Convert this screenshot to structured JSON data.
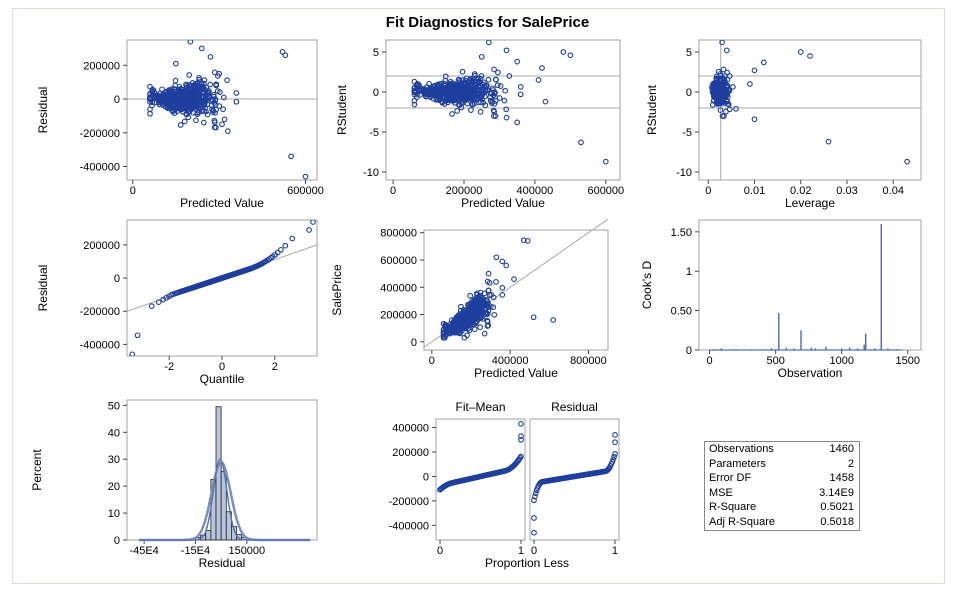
{
  "title": "Fit Diagnostics for SalePrice",
  "colors": {
    "marker": "#1f3f9e",
    "refline": "#a8a8a8",
    "bar": "#b7c4de",
    "curve": "#7a90c0",
    "spike": "#2b52a8"
  },
  "chart_data": [
    {
      "name": "residual-vs-predicted",
      "type": "scatter",
      "xlabel": "Predicted Value",
      "ylabel": "Residual",
      "xlim": [
        -20000,
        640000
      ],
      "ylim": [
        -480000,
        350000
      ],
      "xticks": [
        0,
        600000
      ],
      "yticks": [
        200000,
        0,
        -200000,
        -400000
      ],
      "reference_lines": {
        "y": [
          0
        ]
      },
      "outliers": [
        [
          200000,
          340000
        ],
        [
          240000,
          300000
        ],
        [
          520000,
          280000
        ],
        [
          530000,
          260000
        ],
        [
          150000,
          210000
        ],
        [
          270000,
          250000
        ],
        [
          300000,
          150000
        ],
        [
          290000,
          80000
        ],
        [
          330000,
          -190000
        ],
        [
          310000,
          -150000
        ],
        [
          550000,
          -340000
        ],
        [
          600000,
          -460000
        ]
      ]
    },
    {
      "name": "rstudent-vs-predicted",
      "type": "scatter",
      "xlabel": "Predicted Value",
      "ylabel": "RStudent",
      "xlim": [
        -20000,
        640000
      ],
      "ylim": [
        -11,
        6.5
      ],
      "xticks": [
        0,
        200000,
        400000,
        600000
      ],
      "yticks": [
        5,
        0,
        -5,
        -10
      ],
      "reference_lines": {
        "y": [
          2,
          -2
        ]
      },
      "outliers": [
        [
          270000,
          6.2
        ],
        [
          320000,
          5.2
        ],
        [
          480000,
          5.0
        ],
        [
          500000,
          4.6
        ],
        [
          350000,
          3.8
        ],
        [
          250000,
          4.4
        ],
        [
          420000,
          3.0
        ],
        [
          410000,
          1.5
        ],
        [
          430000,
          -1.2
        ],
        [
          320000,
          -3.2
        ],
        [
          350000,
          -3.8
        ],
        [
          530000,
          -6.3
        ],
        [
          600000,
          -8.7
        ]
      ]
    },
    {
      "name": "rstudent-vs-leverage",
      "type": "scatter",
      "xlabel": "Leverage",
      "ylabel": "RStudent",
      "xlim": [
        -0.002,
        0.046
      ],
      "ylim": [
        -11,
        6.5
      ],
      "xticks": [
        0.0,
        0.01,
        0.02,
        0.03,
        0.04
      ],
      "yticks": [
        5,
        0,
        -5,
        -10
      ],
      "reference_lines": {
        "y": [
          2,
          -2
        ],
        "x": [
          0.0027
        ]
      },
      "outliers": [
        [
          0.003,
          6.2
        ],
        [
          0.004,
          5.2
        ],
        [
          0.02,
          5.0
        ],
        [
          0.022,
          4.5
        ],
        [
          0.012,
          3.7
        ],
        [
          0.01,
          2.7
        ],
        [
          0.009,
          1.0
        ],
        [
          0.006,
          -2.1
        ],
        [
          0.01,
          -3.4
        ],
        [
          0.026,
          -6.2
        ],
        [
          0.043,
          -8.7
        ]
      ]
    },
    {
      "name": "residual-qq",
      "type": "scatter",
      "xlabel": "Quantile",
      "ylabel": "Residual",
      "xlim": [
        -3.6,
        3.6
      ],
      "ylim": [
        -470000,
        350000
      ],
      "xticks": [
        -2,
        0,
        2
      ],
      "yticks": [
        200000,
        0,
        -200000,
        -400000
      ],
      "reference_lines": {
        "diagonal": [
          [
            -3.6,
            -200000
          ],
          [
            3.6,
            200000
          ]
        ]
      },
      "outliers": [
        [
          -3.4,
          -460000
        ],
        [
          -3.2,
          -345000
        ],
        [
          3.3,
          290000
        ],
        [
          3.45,
          338000
        ]
      ]
    },
    {
      "name": "observed-vs-predicted",
      "type": "scatter",
      "xlabel": "Predicted Value",
      "ylabel": "SalePrice",
      "xlim": [
        -40000,
        900000
      ],
      "ylim": [
        -60000,
        820000
      ],
      "xticks": [
        0,
        400000,
        800000
      ],
      "yticks": [
        800000,
        600000,
        400000,
        200000,
        0
      ],
      "reference_lines": {
        "diagonal": [
          [
            -40000,
            -40000
          ],
          [
            900000,
            900000
          ]
        ]
      },
      "outliers": [
        [
          470000,
          745000
        ],
        [
          490000,
          740000
        ],
        [
          330000,
          620000
        ],
        [
          360000,
          590000
        ],
        [
          380000,
          560000
        ],
        [
          290000,
          500000
        ],
        [
          420000,
          460000
        ],
        [
          520000,
          180000
        ],
        [
          620000,
          160000
        ],
        [
          270000,
          60000
        ]
      ]
    },
    {
      "name": "cooks-d",
      "type": "line",
      "xlabel": "Observation",
      "ylabel": "Cook's D",
      "xlim": [
        -80,
        1600
      ],
      "ylim": [
        0,
        1.65
      ],
      "xticks": [
        0,
        500,
        1000,
        1500
      ],
      "yticks": [
        1.5,
        1.0,
        0.5,
        0.0
      ],
      "spikes": [
        [
          30,
          0.01
        ],
        [
          90,
          0.02
        ],
        [
          200,
          0.01
        ],
        [
          310,
          0.01
        ],
        [
          410,
          0.01
        ],
        [
          470,
          0.02
        ],
        [
          524,
          0.47
        ],
        [
          580,
          0.03
        ],
        [
          640,
          0.02
        ],
        [
          692,
          0.25
        ],
        [
          770,
          0.03
        ],
        [
          800,
          0.02
        ],
        [
          880,
          0.04
        ],
        [
          1000,
          0.02
        ],
        [
          1060,
          0.03
        ],
        [
          1120,
          0.02
        ],
        [
          1170,
          0.07
        ],
        [
          1182,
          0.21
        ],
        [
          1250,
          0.02
        ],
        [
          1299,
          1.6
        ],
        [
          1350,
          0.02
        ],
        [
          1420,
          0.01
        ]
      ]
    },
    {
      "name": "residual-histogram",
      "type": "bar",
      "xlabel": "Residual",
      "ylabel": "Percent",
      "xlim": [
        -550000,
        560000
      ],
      "ylim": [
        0,
        52
      ],
      "xtick_labels": [
        "-45E4",
        "-15E4",
        "150000"
      ],
      "xticks": [
        -450000,
        -150000,
        150000
      ],
      "yticks": [
        50,
        40,
        30,
        20,
        10,
        0
      ],
      "bins": [
        [
          -210000,
          -180000,
          0.3
        ],
        [
          -180000,
          -150000,
          0.5
        ],
        [
          -150000,
          -120000,
          0.9
        ],
        [
          -120000,
          -90000,
          1.8
        ],
        [
          -90000,
          -60000,
          3.5
        ],
        [
          -60000,
          -30000,
          22.5
        ],
        [
          -30000,
          0,
          49.5
        ],
        [
          0,
          30000,
          25.5
        ],
        [
          30000,
          60000,
          10.5
        ],
        [
          60000,
          90000,
          5.0
        ],
        [
          90000,
          120000,
          2.0
        ],
        [
          120000,
          150000,
          1.0
        ],
        [
          150000,
          180000,
          0.5
        ]
      ]
    },
    {
      "name": "residual-fit-spread",
      "type": "scatter",
      "xlabel": "Proportion Less",
      "ylabel": "",
      "panel_titles": [
        "Fit–Mean",
        "Residual"
      ],
      "xlim": [
        -0.05,
        1.05
      ],
      "ylim": [
        -520000,
        470000
      ],
      "xticks": [
        0,
        1
      ],
      "yticks": [
        400000,
        200000,
        0,
        -200000,
        -400000
      ]
    }
  ],
  "stats": [
    {
      "label": "Observations",
      "value": "1460"
    },
    {
      "label": "Parameters",
      "value": "2"
    },
    {
      "label": "Error DF",
      "value": "1458"
    },
    {
      "label": "MSE",
      "value": "3.14E9"
    },
    {
      "label": "R-Square",
      "value": "0.5021"
    },
    {
      "label": "Adj R-Square",
      "value": "0.5018"
    }
  ]
}
